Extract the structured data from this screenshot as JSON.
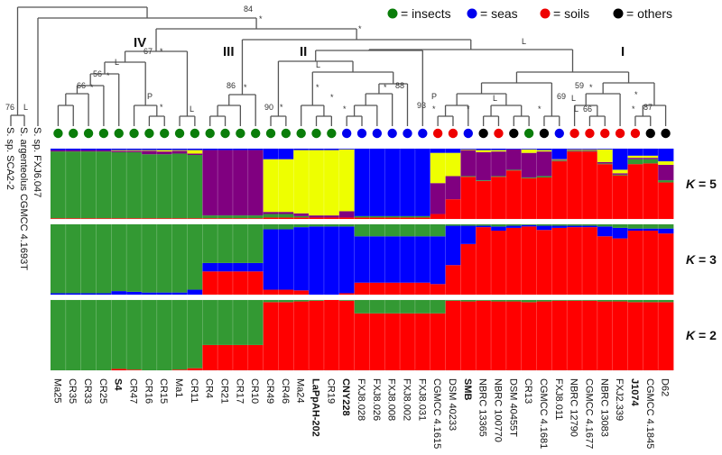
{
  "chart_data": {
    "type": "stacked-bar",
    "title": "",
    "legend": {
      "placement": "top-right",
      "entries": [
        {
          "label": "= insects",
          "color": "#0a7d0a"
        },
        {
          "label": "= seas",
          "color": "#0000ee"
        },
        {
          "label": "= soils",
          "color": "#ee0000"
        },
        {
          "label": "= others",
          "color": "#000000"
        }
      ]
    },
    "outgroups": [
      "S. sp. SCA2-2",
      "S. argenteolus CGMCC 4.1693T",
      "S. sp. FXJ6.047"
    ],
    "outgroup_support": {
      "pair": "76",
      "pair_note": "L"
    },
    "cluster_colors": {
      "c1": "#339933",
      "c2": "#0000ff",
      "c3": "#ff0000",
      "c4": "#800080",
      "c5": "#eeff00",
      "c6": "#8b5a2b",
      "c7": "#d9c37f"
    },
    "samples": [
      {
        "name": "Ma25",
        "bold": false,
        "source": "insects"
      },
      {
        "name": "CR35",
        "bold": false,
        "source": "insects"
      },
      {
        "name": "CR33",
        "bold": false,
        "source": "insects"
      },
      {
        "name": "CR25",
        "bold": false,
        "source": "insects"
      },
      {
        "name": "S4",
        "bold": true,
        "source": "insects"
      },
      {
        "name": "CR47",
        "bold": false,
        "source": "insects"
      },
      {
        "name": "CR16",
        "bold": false,
        "source": "insects"
      },
      {
        "name": "CR15",
        "bold": false,
        "source": "insects"
      },
      {
        "name": "Ma1",
        "bold": false,
        "source": "insects"
      },
      {
        "name": "CR11",
        "bold": false,
        "source": "insects"
      },
      {
        "name": "CR4",
        "bold": false,
        "source": "insects"
      },
      {
        "name": "CR21",
        "bold": false,
        "source": "insects"
      },
      {
        "name": "CR17",
        "bold": false,
        "source": "insects"
      },
      {
        "name": "CR10",
        "bold": false,
        "source": "insects"
      },
      {
        "name": "CR49",
        "bold": false,
        "source": "insects"
      },
      {
        "name": "CR46",
        "bold": false,
        "source": "insects"
      },
      {
        "name": "Ma24",
        "bold": false,
        "source": "insects"
      },
      {
        "name": "LaPpAH-202",
        "bold": true,
        "source": "insects"
      },
      {
        "name": "CR19",
        "bold": false,
        "source": "insects"
      },
      {
        "name": "CNY228",
        "bold": true,
        "source": "seas"
      },
      {
        "name": "FXJ8.028",
        "bold": false,
        "source": "seas"
      },
      {
        "name": "FXJ8.026",
        "bold": false,
        "source": "seas"
      },
      {
        "name": "FXJ8.008",
        "bold": false,
        "source": "seas"
      },
      {
        "name": "FXJ8.002",
        "bold": false,
        "source": "seas"
      },
      {
        "name": "FXJ8.031",
        "bold": false,
        "source": "seas"
      },
      {
        "name": "CGMCC 4.1615",
        "bold": false,
        "source": "soils"
      },
      {
        "name": "DSM 40233",
        "bold": false,
        "source": "soils"
      },
      {
        "name": "SMB",
        "bold": true,
        "source": "seas"
      },
      {
        "name": "NBRC 13365",
        "bold": false,
        "source": "others"
      },
      {
        "name": "NBRC 100770",
        "bold": false,
        "source": "soils"
      },
      {
        "name": "DSM 40455T",
        "bold": false,
        "source": "others"
      },
      {
        "name": "CR13",
        "bold": false,
        "source": "insects"
      },
      {
        "name": "CGMCC 4.1681",
        "bold": false,
        "source": "others"
      },
      {
        "name": "FXJ8.011",
        "bold": false,
        "source": "seas"
      },
      {
        "name": "NBRC 12790",
        "bold": false,
        "source": "soils"
      },
      {
        "name": "CGMCC 4.1677",
        "bold": false,
        "source": "soils"
      },
      {
        "name": "NBRC 13083",
        "bold": false,
        "source": "soils"
      },
      {
        "name": "FXJ2.339",
        "bold": false,
        "source": "soils"
      },
      {
        "name": "J1074",
        "bold": true,
        "source": "soils"
      },
      {
        "name": "CGMCC 4.1845",
        "bold": false,
        "source": "others"
      },
      {
        "name": "D62",
        "bold": false,
        "source": "others"
      }
    ],
    "panels": [
      {
        "label": "K = 5",
        "k": 5,
        "order": [
          "c3",
          "c1",
          "c4",
          "c5",
          "c2"
        ],
        "proportions": [
          [
            0.01,
            0.95,
            0.02,
            0.0,
            0.02
          ],
          [
            0.01,
            0.95,
            0.02,
            0.0,
            0.02
          ],
          [
            0.01,
            0.95,
            0.02,
            0.0,
            0.02
          ],
          [
            0.01,
            0.95,
            0.02,
            0.0,
            0.02
          ],
          [
            0.01,
            0.94,
            0.02,
            0.01,
            0.02
          ],
          [
            0.01,
            0.94,
            0.02,
            0.01,
            0.02
          ],
          [
            0.01,
            0.91,
            0.05,
            0.01,
            0.02
          ],
          [
            0.01,
            0.91,
            0.04,
            0.02,
            0.02
          ],
          [
            0.01,
            0.92,
            0.04,
            0.01,
            0.02
          ],
          [
            0.01,
            0.9,
            0.02,
            0.05,
            0.02
          ],
          [
            0.01,
            0.04,
            0.93,
            0.0,
            0.02
          ],
          [
            0.01,
            0.04,
            0.93,
            0.0,
            0.02
          ],
          [
            0.01,
            0.04,
            0.93,
            0.0,
            0.02
          ],
          [
            0.01,
            0.04,
            0.93,
            0.0,
            0.02
          ],
          [
            0.02,
            0.05,
            0.03,
            0.75,
            0.15
          ],
          [
            0.02,
            0.05,
            0.03,
            0.75,
            0.15
          ],
          [
            0.02,
            0.02,
            0.04,
            0.9,
            0.02
          ],
          [
            0.02,
            0.0,
            0.03,
            0.93,
            0.02
          ],
          [
            0.02,
            0.0,
            0.03,
            0.93,
            0.02
          ],
          [
            0.02,
            0.0,
            0.09,
            0.88,
            0.01
          ],
          [
            0.02,
            0.02,
            0.0,
            0.0,
            0.96
          ],
          [
            0.02,
            0.02,
            0.0,
            0.0,
            0.96
          ],
          [
            0.02,
            0.02,
            0.0,
            0.0,
            0.96
          ],
          [
            0.02,
            0.02,
            0.0,
            0.0,
            0.96
          ],
          [
            0.02,
            0.02,
            0.0,
            0.0,
            0.96
          ],
          [
            0.07,
            0.0,
            0.44,
            0.43,
            0.06
          ],
          [
            0.28,
            0.0,
            0.33,
            0.33,
            0.06
          ],
          [
            0.6,
            0.01,
            0.37,
            0.01,
            0.01
          ],
          [
            0.54,
            0.01,
            0.4,
            0.03,
            0.02
          ],
          [
            0.6,
            0.01,
            0.35,
            0.02,
            0.02
          ],
          [
            0.69,
            0.01,
            0.29,
            0.0,
            0.01
          ],
          [
            0.58,
            0.01,
            0.35,
            0.05,
            0.01
          ],
          [
            0.59,
            0.02,
            0.35,
            0.02,
            0.02
          ],
          [
            0.82,
            0.01,
            0.01,
            0.01,
            0.15
          ],
          [
            0.96,
            0.01,
            0.01,
            0.01,
            0.01
          ],
          [
            0.96,
            0.01,
            0.01,
            0.01,
            0.01
          ],
          [
            0.78,
            0.01,
            0.02,
            0.18,
            0.01
          ],
          [
            0.62,
            0.01,
            0.02,
            0.05,
            0.3
          ],
          [
            0.78,
            0.07,
            0.02,
            0.03,
            0.1
          ],
          [
            0.79,
            0.06,
            0.02,
            0.03,
            0.1
          ],
          [
            0.52,
            0.03,
            0.22,
            0.05,
            0.18
          ]
        ]
      },
      {
        "label": "K = 3",
        "k": 3,
        "order": [
          "c3",
          "c2",
          "c1"
        ],
        "proportions": [
          [
            0.0,
            0.02,
            0.98
          ],
          [
            0.0,
            0.02,
            0.98
          ],
          [
            0.0,
            0.02,
            0.98
          ],
          [
            0.0,
            0.02,
            0.98
          ],
          [
            0.0,
            0.05,
            0.95
          ],
          [
            0.0,
            0.04,
            0.96
          ],
          [
            0.0,
            0.03,
            0.97
          ],
          [
            0.0,
            0.03,
            0.97
          ],
          [
            0.0,
            0.03,
            0.97
          ],
          [
            0.0,
            0.07,
            0.93
          ],
          [
            0.33,
            0.12,
            0.55
          ],
          [
            0.33,
            0.12,
            0.55
          ],
          [
            0.33,
            0.12,
            0.55
          ],
          [
            0.33,
            0.12,
            0.55
          ],
          [
            0.07,
            0.86,
            0.07
          ],
          [
            0.07,
            0.86,
            0.07
          ],
          [
            0.06,
            0.9,
            0.04
          ],
          [
            0.0,
            0.97,
            0.03
          ],
          [
            0.0,
            0.97,
            0.03
          ],
          [
            0.02,
            0.95,
            0.03
          ],
          [
            0.17,
            0.66,
            0.17
          ],
          [
            0.17,
            0.66,
            0.17
          ],
          [
            0.17,
            0.66,
            0.17
          ],
          [
            0.17,
            0.66,
            0.17
          ],
          [
            0.17,
            0.66,
            0.17
          ],
          [
            0.15,
            0.68,
            0.17
          ],
          [
            0.42,
            0.56,
            0.02
          ],
          [
            0.72,
            0.26,
            0.02
          ],
          [
            0.96,
            0.02,
            0.02
          ],
          [
            0.91,
            0.06,
            0.03
          ],
          [
            0.95,
            0.03,
            0.02
          ],
          [
            0.97,
            0.02,
            0.01
          ],
          [
            0.92,
            0.06,
            0.02
          ],
          [
            0.95,
            0.03,
            0.02
          ],
          [
            0.96,
            0.02,
            0.02
          ],
          [
            0.96,
            0.02,
            0.02
          ],
          [
            0.83,
            0.14,
            0.03
          ],
          [
            0.8,
            0.15,
            0.05
          ],
          [
            0.91,
            0.03,
            0.06
          ],
          [
            0.91,
            0.03,
            0.06
          ],
          [
            0.87,
            0.07,
            0.06
          ]
        ]
      },
      {
        "label": "K = 2",
        "k": 2,
        "order": [
          "c3",
          "c1"
        ],
        "proportions": [
          [
            0.0,
            1.0
          ],
          [
            0.0,
            1.0
          ],
          [
            0.0,
            1.0
          ],
          [
            0.0,
            1.0
          ],
          [
            0.02,
            0.98
          ],
          [
            0.01,
            0.99
          ],
          [
            0.0,
            1.0
          ],
          [
            0.0,
            1.0
          ],
          [
            0.01,
            0.99
          ],
          [
            0.03,
            0.97
          ],
          [
            0.36,
            0.64
          ],
          [
            0.36,
            0.64
          ],
          [
            0.36,
            0.64
          ],
          [
            0.36,
            0.64
          ],
          [
            0.97,
            0.03
          ],
          [
            0.97,
            0.03
          ],
          [
            0.98,
            0.02
          ],
          [
            0.99,
            0.01
          ],
          [
            1.0,
            0.0
          ],
          [
            0.99,
            0.01
          ],
          [
            0.81,
            0.19
          ],
          [
            0.81,
            0.19
          ],
          [
            0.81,
            0.19
          ],
          [
            0.81,
            0.19
          ],
          [
            0.81,
            0.19
          ],
          [
            0.81,
            0.19
          ],
          [
            0.99,
            0.01
          ],
          [
            0.98,
            0.02
          ],
          [
            0.99,
            0.01
          ],
          [
            0.98,
            0.02
          ],
          [
            0.98,
            0.02
          ],
          [
            0.97,
            0.03
          ],
          [
            0.98,
            0.02
          ],
          [
            0.99,
            0.01
          ],
          [
            0.99,
            0.01
          ],
          [
            0.99,
            0.01
          ],
          [
            0.98,
            0.02
          ],
          [
            0.98,
            0.02
          ],
          [
            0.97,
            0.03
          ],
          [
            0.97,
            0.03
          ],
          [
            0.97,
            0.03
          ]
        ]
      }
    ],
    "clades": [
      "IV",
      "III",
      "II",
      "I"
    ],
    "support_labels": [
      "84",
      "67",
      "56",
      "66",
      "86",
      "90",
      "88",
      "93",
      "69",
      "59",
      "66",
      "87",
      "76",
      "L",
      "P",
      "*"
    ]
  }
}
